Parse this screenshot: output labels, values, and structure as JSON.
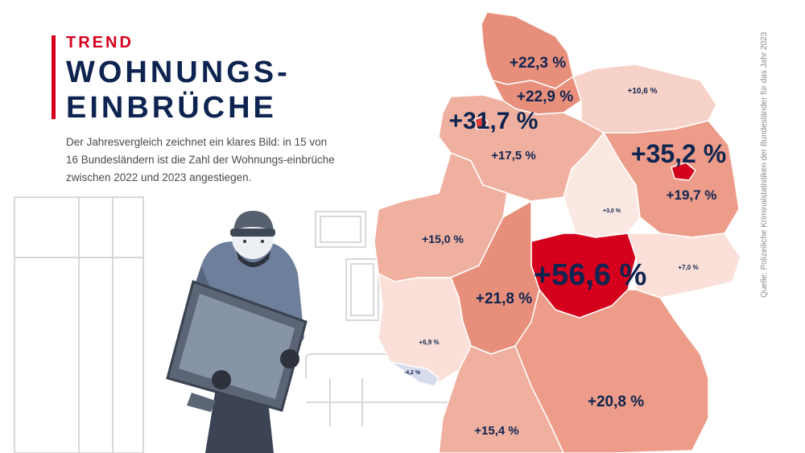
{
  "header": {
    "kicker": "TREND",
    "title": "WOHNUNGS-\nEINBRÜCHE",
    "intro": "Der Jahresvergleich zeichnet ein klares Bild: in 15 von 16 Bundesländern ist die Zahl der Wohnungs-einbrüche zwischen 2022 und 2023 angestiegen."
  },
  "source": "Quelle: Polizeiliche Kriminalstatistiken der Bundesländer für das Jahr 2023",
  "colors": {
    "accent": "#d5001c",
    "navy": "#0e2450",
    "max": "#d5001c",
    "negative": "#d6dcec"
  },
  "map": {
    "states": [
      {
        "id": "sh",
        "value": "+22,3 %",
        "change": 22.3
      },
      {
        "id": "hh",
        "value": "+22,9 %",
        "change": 22.9
      },
      {
        "id": "mv",
        "value": "+10,6 %",
        "change": 10.6
      },
      {
        "id": "hb",
        "value": "+31,7 %",
        "change": 31.7
      },
      {
        "id": "ni",
        "value": "+17,5 %",
        "change": 17.5
      },
      {
        "id": "be",
        "value": "+35,2 %",
        "change": 35.2
      },
      {
        "id": "bb",
        "value": "+19,7 %",
        "change": 19.7
      },
      {
        "id": "st",
        "value": "+3,0 %",
        "change": 3.0
      },
      {
        "id": "nw",
        "value": "+15,0 %",
        "change": 15.0
      },
      {
        "id": "th",
        "value": "+56,6 %",
        "change": 56.6
      },
      {
        "id": "sn",
        "value": "+7,0 %",
        "change": 7.0
      },
      {
        "id": "he",
        "value": "+21,8 %",
        "change": 21.8
      },
      {
        "id": "rp",
        "value": "+6,9 %",
        "change": 6.9
      },
      {
        "id": "sl",
        "value": "-4,2 %",
        "change": -4.2
      },
      {
        "id": "by",
        "value": "+20,8 %",
        "change": 20.8
      },
      {
        "id": "bw",
        "value": "+15,4 %",
        "change": 15.4
      }
    ]
  }
}
